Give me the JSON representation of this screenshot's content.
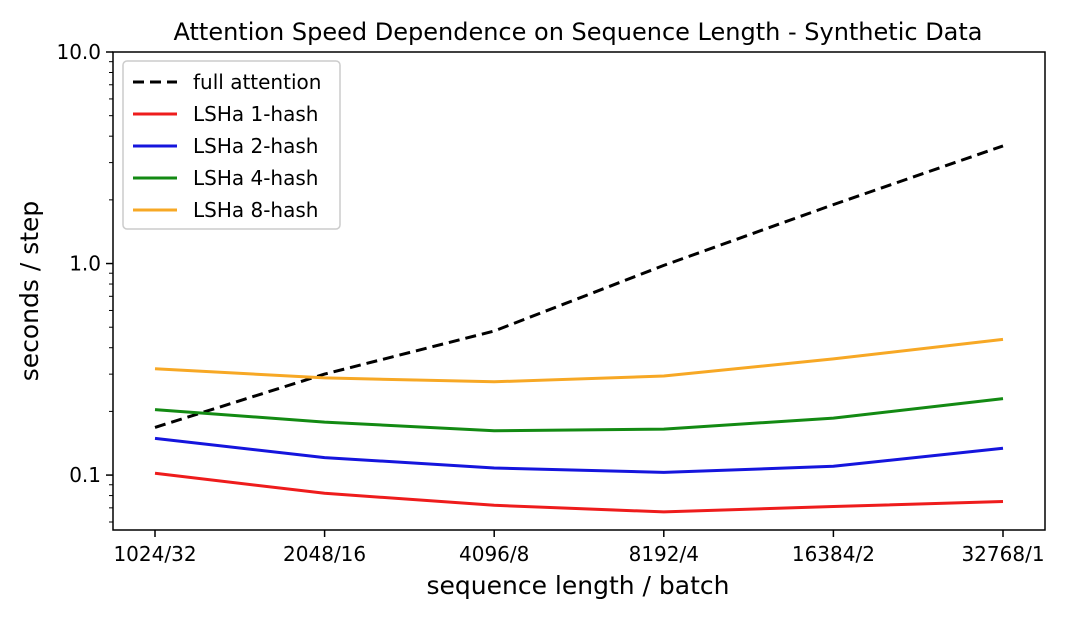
{
  "chart_data": {
    "type": "line",
    "title": "Attention Speed Dependence on Sequence Length - Synthetic Data",
    "xlabel": "sequence length / batch",
    "ylabel": "seconds / step",
    "categories": [
      "1024/32",
      "2048/16",
      "4096/8",
      "8192/4",
      "16384/2",
      "32768/1"
    ],
    "yscale": "log",
    "ylim": [
      0.055,
      10.0
    ],
    "yticks": [
      {
        "value": 0.1,
        "label": "0.1"
      },
      {
        "value": 1.0,
        "label": "1.0"
      },
      {
        "value": 10.0,
        "label": "10.0"
      }
    ],
    "legend_position": "top-left",
    "grid": false,
    "series": [
      {
        "name": "full attention",
        "color": "#000000",
        "dashed": true,
        "values": [
          0.168,
          0.3,
          0.48,
          0.98,
          1.9,
          3.6
        ]
      },
      {
        "name": "LSHa 1-hash",
        "color": "#ee1c1c",
        "dashed": false,
        "values": [
          0.102,
          0.082,
          0.072,
          0.067,
          0.071,
          0.075
        ]
      },
      {
        "name": "LSHa 2-hash",
        "color": "#1515dd",
        "dashed": false,
        "values": [
          0.149,
          0.121,
          0.108,
          0.103,
          0.11,
          0.134
        ]
      },
      {
        "name": "LSHa 4-hash",
        "color": "#138a13",
        "dashed": false,
        "values": [
          0.204,
          0.178,
          0.162,
          0.165,
          0.186,
          0.23
        ]
      },
      {
        "name": "LSHa 8-hash",
        "color": "#f7a825",
        "dashed": false,
        "values": [
          0.318,
          0.288,
          0.276,
          0.294,
          0.354,
          0.438
        ]
      }
    ]
  }
}
